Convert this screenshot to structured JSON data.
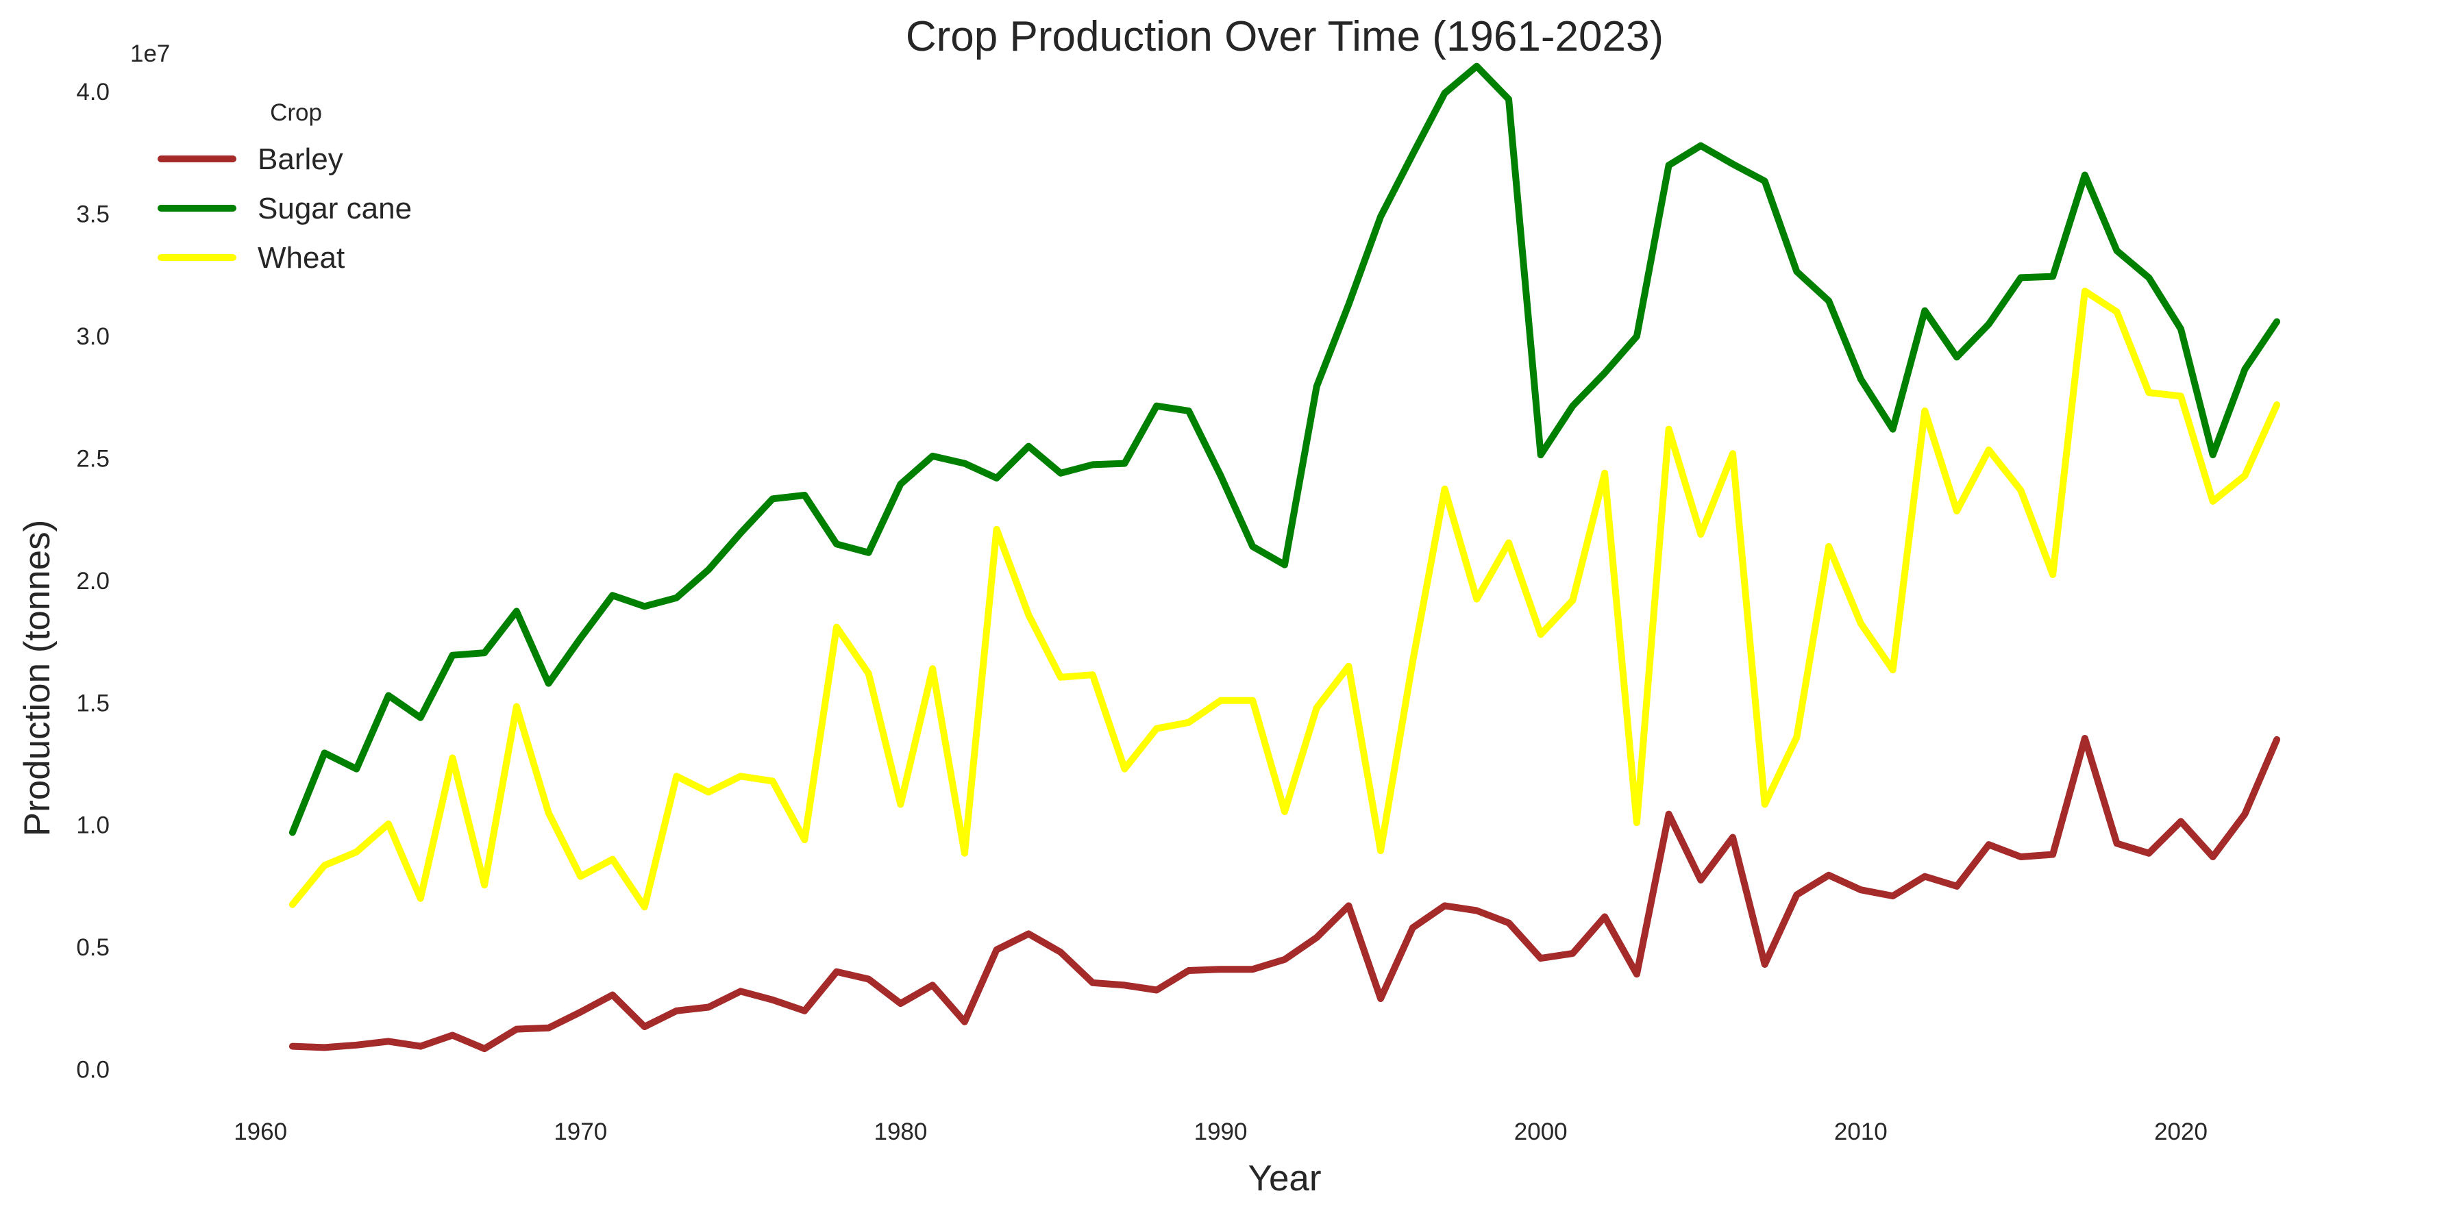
{
  "chart_data": {
    "type": "line",
    "title": "Crop Production Over Time (1961-2023)",
    "xlabel": "Year",
    "ylabel": "Production (tonnes)",
    "y_offset_label": "1e7",
    "y_scale": 10000000,
    "xlim": [
      1957,
      2027
    ],
    "ylim": [
      -1500000,
      42500000
    ],
    "xticks": [
      1960,
      1970,
      1980,
      1990,
      2000,
      2010,
      2020
    ],
    "yticks": [
      0,
      5000000,
      10000000,
      15000000,
      20000000,
      25000000,
      30000000,
      35000000,
      40000000
    ],
    "ytick_labels": [
      "0.0",
      "0.5",
      "1.0",
      "1.5",
      "2.0",
      "2.5",
      "3.0",
      "3.5",
      "4.0"
    ],
    "grid": false,
    "legend": {
      "title": "Crop",
      "position": "top-left"
    },
    "x": [
      1961,
      1962,
      1963,
      1964,
      1965,
      1966,
      1967,
      1968,
      1969,
      1970,
      1971,
      1972,
      1973,
      1974,
      1975,
      1976,
      1977,
      1978,
      1979,
      1980,
      1981,
      1982,
      1983,
      1984,
      1985,
      1986,
      1987,
      1988,
      1989,
      1990,
      1991,
      1992,
      1993,
      1994,
      1995,
      1996,
      1997,
      1998,
      1999,
      2000,
      2001,
      2002,
      2003,
      2004,
      2005,
      2006,
      2007,
      2008,
      2009,
      2010,
      2011,
      2012,
      2013,
      2014,
      2015,
      2016,
      2017,
      2018,
      2019,
      2020,
      2021,
      2022,
      2023
    ],
    "series": [
      {
        "name": "Barley",
        "color": "#a52a2a",
        "values": [
          950000,
          900000,
          1000000,
          1150000,
          950000,
          1400000,
          850000,
          1650000,
          1700000,
          2350000,
          3050000,
          1750000,
          2400000,
          2550000,
          3200000,
          2850000,
          2400000,
          4000000,
          3700000,
          2700000,
          3450000,
          1950000,
          4900000,
          5550000,
          4800000,
          3550000,
          3450000,
          3250000,
          4050000,
          4100000,
          4100000,
          4500000,
          5400000,
          6700000,
          2900000,
          5800000,
          6700000,
          6500000,
          6000000,
          4550000,
          4750000,
          6250000,
          3900000,
          10450000,
          7750000,
          9500000,
          4300000,
          7150000,
          7950000,
          7350000,
          7100000,
          7900000,
          7500000,
          9200000,
          8700000,
          8800000,
          13550000,
          9250000,
          8850000,
          10150000,
          8700000,
          10450000,
          13500000
        ]
      },
      {
        "name": "Sugar cane",
        "color": "#008000",
        "values": [
          9700000,
          12950000,
          12300000,
          15300000,
          14400000,
          16950000,
          17050000,
          18750000,
          15800000,
          17650000,
          19400000,
          18950000,
          19300000,
          20450000,
          21950000,
          23350000,
          23500000,
          21500000,
          21150000,
          23950000,
          25100000,
          24800000,
          24200000,
          25500000,
          24400000,
          24750000,
          24800000,
          27150000,
          26950000,
          24300000,
          21400000,
          20650000,
          27950000,
          31300000,
          34900000,
          37450000,
          39950000,
          41050000,
          39700000,
          25150000,
          27150000,
          28500000,
          30000000,
          37000000,
          37800000,
          37050000,
          36350000,
          32650000,
          31450000,
          28250000,
          26200000,
          31050000,
          29150000,
          30500000,
          32400000,
          32450000,
          36600000,
          33500000,
          32400000,
          30300000,
          25150000,
          28650000,
          30600000
        ]
      },
      {
        "name": "Wheat",
        "color": "#ffff00",
        "values": [
          6750000,
          8350000,
          8900000,
          10050000,
          7000000,
          12750000,
          7550000,
          14850000,
          10500000,
          7900000,
          8600000,
          6650000,
          12000000,
          11350000,
          12000000,
          11800000,
          9400000,
          18100000,
          16200000,
          10850000,
          16400000,
          8850000,
          22100000,
          18600000,
          16050000,
          16150000,
          12300000,
          13950000,
          14200000,
          15100000,
          15100000,
          10550000,
          14800000,
          16500000,
          8950000,
          16700000,
          23750000,
          19250000,
          21550000,
          17800000,
          19200000,
          24400000,
          10100000,
          26200000,
          21900000,
          25200000,
          10850000,
          13600000,
          21400000,
          18250000,
          16350000,
          26950000,
          22850000,
          25350000,
          23700000,
          20250000,
          31850000,
          31000000,
          27700000,
          27550000,
          23250000,
          24300000,
          27200000
        ]
      }
    ]
  }
}
